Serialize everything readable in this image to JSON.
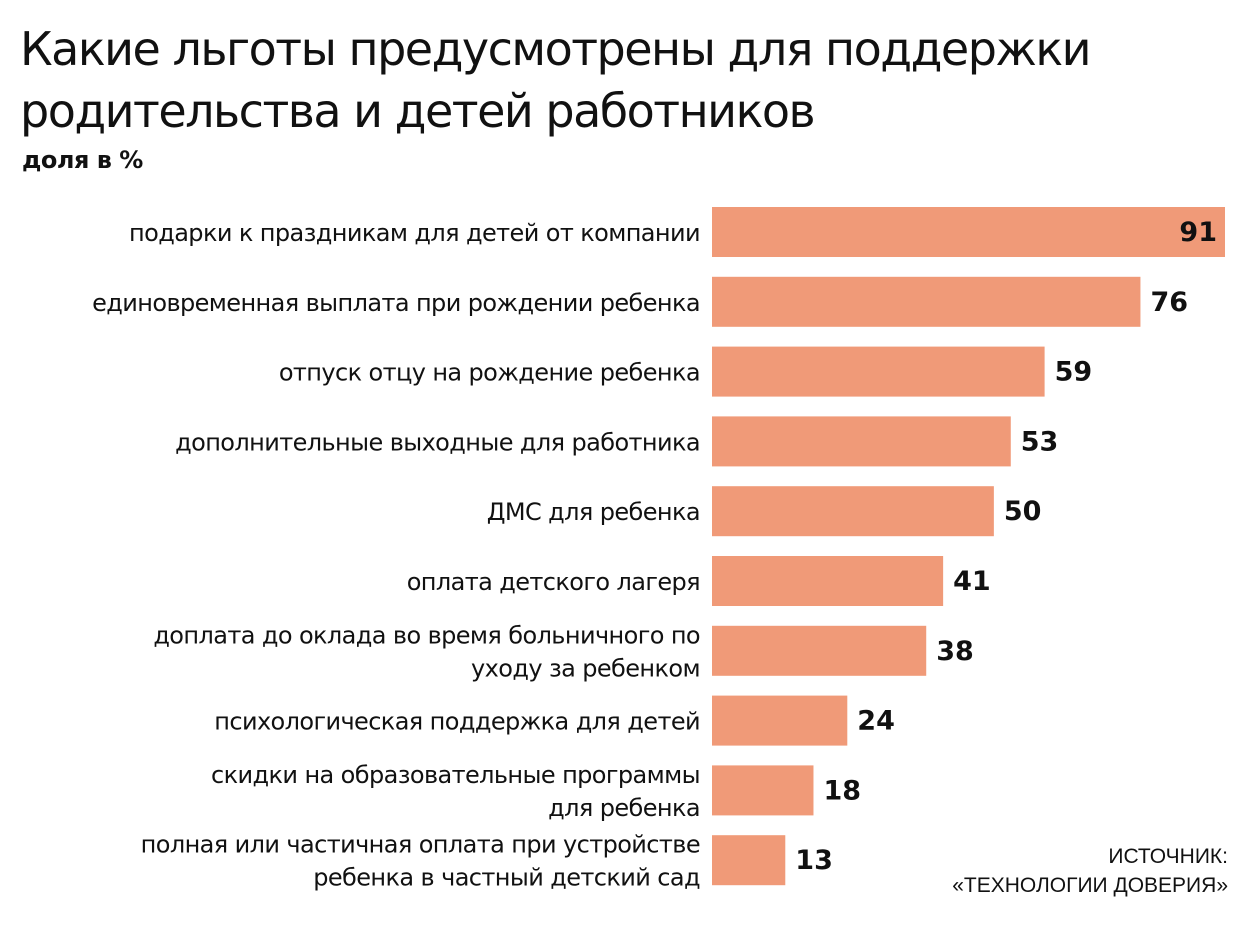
{
  "header": {
    "title_line1": "Какие льготы предусмотрены для поддержки",
    "title_line2": "родительства и детей работников",
    "subtitle": "доля в %"
  },
  "source": {
    "line1": "ИСТОЧНИК:",
    "line2": "«ТЕХНОЛОГИИ ДОВЕРИЯ»"
  },
  "colors": {
    "bar": "#f09a78",
    "text": "#111111"
  },
  "chart_data": {
    "type": "bar",
    "orientation": "horizontal",
    "title": "Какие льготы предусмотрены для поддержки родительства и детей работников",
    "subtitle": "доля в %",
    "categories": [
      [
        "подарки к праздникам для детей от компании"
      ],
      [
        "единовременная выплата при рождении ребенка"
      ],
      [
        "отпуск отцу на рождение ребенка"
      ],
      [
        "дополнительные выходные для работника"
      ],
      [
        "ДМС для ребенка"
      ],
      [
        "оплата детского лагеря"
      ],
      [
        "доплата до оклада во время больничного по",
        "уходу за ребенком"
      ],
      [
        "психологическая поддержка для детей"
      ],
      [
        "скидки на образовательные программы",
        "для ребенка"
      ],
      [
        "полная или частичная оплата при устройстве",
        "ребенка в частный детский сад"
      ]
    ],
    "values": [
      91,
      76,
      59,
      53,
      50,
      41,
      38,
      24,
      18,
      13
    ],
    "xlim": [
      0,
      91
    ],
    "data_labels": true,
    "grid": false
  }
}
